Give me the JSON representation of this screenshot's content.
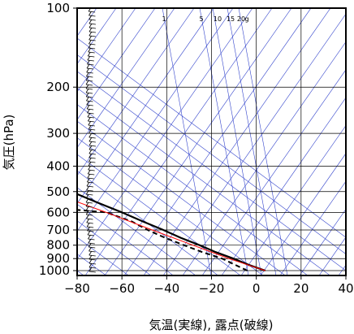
{
  "chart_data": {
    "type": "skew-t",
    "title": "",
    "xlabel": "気温(実線), 露点(破線)",
    "ylabel": "気圧(hPa)",
    "xlim": [
      -80,
      40
    ],
    "ylim": [
      1050,
      100
    ],
    "y_scale": "log",
    "x_ticks": [
      -80,
      -60,
      -40,
      -20,
      0,
      20,
      40
    ],
    "x_tick_labels": [
      "−80",
      "−60",
      "−40",
      "−20",
      "0",
      "20",
      "40"
    ],
    "y_ticks": [
      100,
      200,
      300,
      400,
      500,
      600,
      700,
      800,
      900,
      1000
    ],
    "y_tick_labels": [
      "100",
      "200",
      "300",
      "400",
      "500",
      "600",
      "700",
      "800",
      "900",
      "1000"
    ],
    "mixing_ratio_labels": [
      "1",
      "5",
      "10",
      "15",
      "20",
      "g"
    ],
    "colors": {
      "temperature": "#000000",
      "dewpoint": "#000000",
      "parcel": "#ff0000",
      "isotherms_adiabats": "#3344cc",
      "grid": "#000000"
    },
    "series": [
      {
        "name": "気温",
        "style": "solid",
        "points": [
          {
            "p": 1000,
            "t": 4
          },
          {
            "p": 950,
            "t": 0
          },
          {
            "p": 900,
            "t": -3
          },
          {
            "p": 850,
            "t": -7
          },
          {
            "p": 800,
            "t": -10
          },
          {
            "p": 750,
            "t": -14
          },
          {
            "p": 700,
            "t": -17
          },
          {
            "p": 650,
            "t": -21
          },
          {
            "p": 600,
            "t": -25
          },
          {
            "p": 550,
            "t": -30
          },
          {
            "p": 500,
            "t": -35
          },
          {
            "p": 450,
            "t": -37
          },
          {
            "p": 400,
            "t": -40
          },
          {
            "p": 350,
            "t": -43
          },
          {
            "p": 300,
            "t": -41
          },
          {
            "p": 250,
            "t": -42
          },
          {
            "p": 200,
            "t": -49
          },
          {
            "p": 170,
            "t": -53
          },
          {
            "p": 150,
            "t": -56
          },
          {
            "p": 120,
            "t": -60
          },
          {
            "p": 110,
            "t": -59
          },
          {
            "p": 100,
            "t": -62
          }
        ]
      },
      {
        "name": "露点",
        "style": "dashed",
        "points": [
          {
            "p": 1000,
            "t": -4
          },
          {
            "p": 950,
            "t": -6
          },
          {
            "p": 900,
            "t": -8
          },
          {
            "p": 850,
            "t": -13
          },
          {
            "p": 800,
            "t": -17
          },
          {
            "p": 750,
            "t": -21
          },
          {
            "p": 700,
            "t": -24
          },
          {
            "p": 650,
            "t": -26
          },
          {
            "p": 600,
            "t": -32
          },
          {
            "p": 580,
            "t": -50
          },
          {
            "p": 500,
            "t": -55
          },
          {
            "p": 450,
            "t": -58
          },
          {
            "p": 400,
            "t": -62
          },
          {
            "p": 350,
            "t": -70
          },
          {
            "p": 340,
            "t": -80
          }
        ]
      },
      {
        "name": "parcel",
        "style": "solid-red",
        "points": [
          {
            "p": 1000,
            "t": 4
          },
          {
            "p": 900,
            "t": -5
          },
          {
            "p": 800,
            "t": -13
          },
          {
            "p": 700,
            "t": -22
          },
          {
            "p": 600,
            "t": -32
          },
          {
            "p": 500,
            "t": -45
          },
          {
            "p": 400,
            "t": -60
          },
          {
            "p": 300,
            "t": -80
          }
        ]
      }
    ],
    "wind_barbs": true
  }
}
